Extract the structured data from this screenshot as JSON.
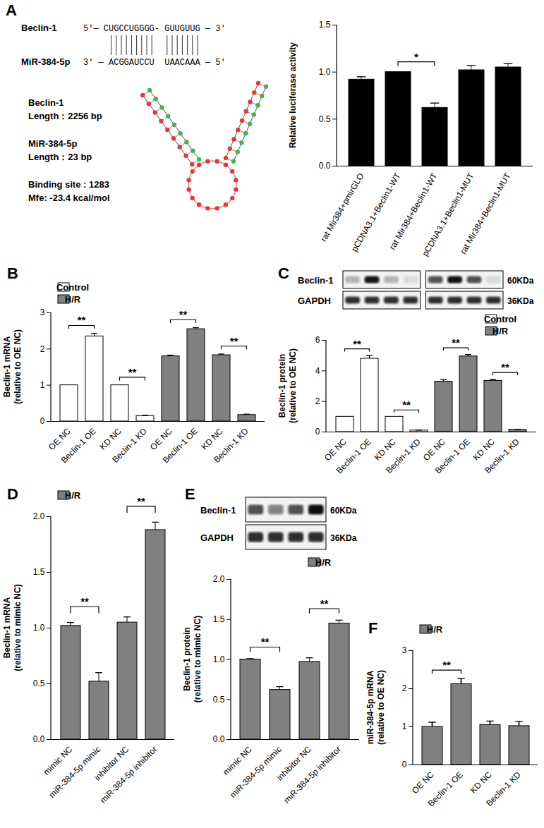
{
  "diagram": {
    "panel": "A",
    "alignment": [
      {
        "name": "Beclin-1",
        "sequence": "5'— CUGCCUGGGG- GUUGUUG — 3'"
      },
      {
        "name": "MiR-384-5p",
        "sequence": "3' — ACGGAUCCU  UAACAAA — 5'"
      }
    ],
    "info": [
      [
        "Beclin-1",
        "Length：2256 bp"
      ],
      [
        "MiR-384-5p",
        "Length：23 bp"
      ],
      [
        "Binding site : 1283",
        "Mfe: -23.4 kcal/mol"
      ]
    ]
  },
  "chart_data": [
    {
      "type": "bar",
      "ylabel": "Relative luciferase activity",
      "categories": [
        "rat Mir384+pmirGLO",
        "pCDNA3.1+Beclin1-WT",
        "rat Mir384+Beclin1-WT",
        "pCDNA3.1+Beclin1-MUT",
        "rat Mir384+Beclin1-MUT"
      ],
      "values": [
        0.92,
        1.0,
        0.62,
        1.02,
        1.05
      ],
      "errors": [
        0.03,
        0,
        0.05,
        0.05,
        0.04
      ],
      "color": "#000000",
      "ylim": [
        0,
        1.5
      ],
      "yticks": [
        {
          "value": 0,
          "label": "0.0"
        },
        0.5,
        {
          "value": 1,
          "label": "1.0"
        },
        1.5
      ],
      "annotations": [
        {
          "text": "*",
          "between": [
            1,
            2
          ]
        }
      ]
    },
    {
      "type": "bar",
      "panel": "B",
      "ylabel": "Beclin-1 mRNA\n(relative to OE NC)",
      "categories": [
        "OE NC",
        "Beclin-1 OE",
        "KD NC",
        "Beclin-1 KD",
        "OE NC",
        "Beclin-1 OE",
        "KD NC",
        "Beclin-1 KD"
      ],
      "series": [
        {
          "name": "Control",
          "color": "#ffffff",
          "values": [
            1,
            2.35,
            1,
            0.15,
            null,
            null,
            null,
            null
          ],
          "errors": [
            0,
            0.08,
            0,
            0.02,
            null,
            null,
            null,
            null
          ]
        },
        {
          "name": "H/R",
          "color": "#808080",
          "values": [
            null,
            null,
            null,
            null,
            1.8,
            2.55,
            1.83,
            0.18
          ],
          "errors": [
            null,
            null,
            null,
            null,
            0.03,
            0.04,
            0.03,
            0.02
          ]
        }
      ],
      "ylim": [
        0,
        3
      ],
      "yticks": [
        0,
        1,
        2,
        3
      ],
      "legend": "top-left",
      "annotations": [
        {
          "text": "**",
          "between": [
            0,
            1
          ]
        },
        {
          "text": "**",
          "between": [
            2,
            3
          ]
        },
        {
          "text": "**",
          "between": [
            4,
            5
          ]
        },
        {
          "text": "**",
          "between": [
            6,
            7
          ]
        }
      ]
    },
    {
      "type": "bar",
      "panel": "C",
      "ylabel": "Beclin-1 protein\n(relative to OE NC)",
      "categories": [
        "OE NC",
        "Beclin-1 OE",
        "KD NC",
        "Beclin-1 KD",
        "OE NC",
        "Beclin-1 OE",
        "KD NC",
        "Beclin-1 KD"
      ],
      "series": [
        {
          "name": "Control",
          "color": "#ffffff",
          "values": [
            1,
            4.8,
            1,
            0.1,
            null,
            null,
            null,
            null
          ],
          "errors": [
            0,
            0.2,
            0,
            0.02,
            null,
            null,
            null,
            null
          ]
        },
        {
          "name": "H/R",
          "color": "#808080",
          "values": [
            null,
            null,
            null,
            null,
            3.3,
            4.95,
            3.35,
            0.15
          ],
          "errors": [
            null,
            null,
            null,
            null,
            0.12,
            0.12,
            0.1,
            0.02
          ]
        }
      ],
      "ylim": [
        0,
        6
      ],
      "yticks": [
        0,
        2,
        4,
        6
      ],
      "legend": "top-right",
      "annotations": [
        {
          "text": "**",
          "between": [
            0,
            1
          ]
        },
        {
          "text": "**",
          "between": [
            2,
            3
          ]
        },
        {
          "text": "**",
          "between": [
            4,
            5
          ]
        },
        {
          "text": "**",
          "between": [
            6,
            7
          ]
        }
      ],
      "blot": {
        "rows": [
          {
            "label": "Beclin-1",
            "size": "60KDa"
          },
          {
            "label": "GAPDH",
            "size": "36KDa"
          }
        ]
      }
    },
    {
      "type": "bar",
      "panel": "D",
      "ylabel": "Beclin-1 mRNA\n(relative to mimic NC)",
      "categories": [
        "mimic NC",
        "miR-384-5p mimic",
        "inhibitor NC",
        "miR-384-5p inhibitor"
      ],
      "series": [
        {
          "name": "H/R",
          "color": "#808080",
          "values": [
            1.02,
            0.52,
            1.05,
            1.88
          ],
          "errors": [
            0.03,
            0.08,
            0.05,
            0.07
          ]
        }
      ],
      "ylim": [
        0,
        2
      ],
      "yticks": [
        {
          "value": 0,
          "label": "0.0"
        },
        0.5,
        {
          "value": 1,
          "label": "1.0"
        },
        1.5,
        {
          "value": 2,
          "label": "2.0"
        }
      ],
      "legend": "top-left",
      "annotations": [
        {
          "text": "**",
          "between": [
            0,
            1
          ]
        },
        {
          "text": "**",
          "between": [
            2,
            3
          ]
        }
      ]
    },
    {
      "type": "bar",
      "panel": "E",
      "ylabel": "Beclin-1 protein\n(relative to mimic NC)",
      "categories": [
        "mimic NC",
        "miR-384-5p mimic",
        "inhibitor NC",
        "miR-384-5p inhibitor"
      ],
      "series": [
        {
          "name": "H/R",
          "color": "#808080",
          "values": [
            1.0,
            0.62,
            0.97,
            1.45
          ],
          "errors": [
            0.01,
            0.04,
            0.05,
            0.04
          ]
        }
      ],
      "ylim": [
        0,
        2
      ],
      "yticks": [
        {
          "value": 0,
          "label": "0.0"
        },
        0.5,
        {
          "value": 1,
          "label": "1.0"
        },
        1.5,
        {
          "value": 2,
          "label": "2.0"
        }
      ],
      "legend": "top-right",
      "annotations": [
        {
          "text": "**",
          "between": [
            0,
            1
          ]
        },
        {
          "text": "**",
          "between": [
            2,
            3
          ]
        }
      ],
      "blot": {
        "rows": [
          {
            "label": "Beclin-1",
            "size": "60KDa"
          },
          {
            "label": "GAPDH",
            "size": "36KDa"
          }
        ]
      }
    },
    {
      "type": "bar",
      "panel": "F",
      "ylabel": "miR-384-5p mRNA\n(relative to OE NC)",
      "categories": [
        "OE NC",
        "Beclin-1 OE",
        "KD NC",
        "Beclin-1 KD"
      ],
      "series": [
        {
          "name": "H/R",
          "color": "#808080",
          "values": [
            1.0,
            2.12,
            1.05,
            1.02
          ],
          "errors": [
            0.12,
            0.15,
            0.1,
            0.12
          ]
        }
      ],
      "ylim": [
        0,
        3
      ],
      "yticks": [
        0,
        1,
        2,
        3
      ],
      "legend": "top-left",
      "annotations": [
        {
          "text": "**",
          "between": [
            0,
            1
          ]
        }
      ]
    }
  ]
}
